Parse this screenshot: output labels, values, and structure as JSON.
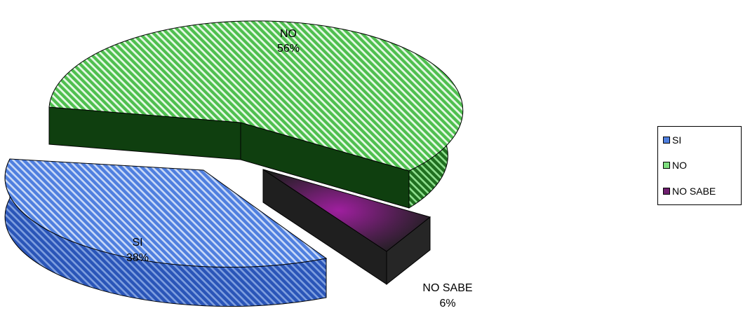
{
  "chart_data": {
    "type": "pie",
    "title": "",
    "categories": [
      "SI",
      "NO",
      "NO SABE"
    ],
    "values": [
      38,
      56,
      6
    ],
    "unit": "%",
    "data_labels": [
      {
        "name": "SI",
        "value": "38%"
      },
      {
        "name": "NO",
        "value": "56%"
      },
      {
        "name": "NO SABE",
        "value": "6%"
      }
    ],
    "legend": {
      "position": "right",
      "items": [
        "SI",
        "NO",
        "NO SABE"
      ]
    },
    "colors": {
      "SI": "#4f7fdf",
      "NO": "#7fdf7f",
      "NO SABE": "#6f1f6f"
    },
    "style": "3d-exploded-hatched"
  }
}
